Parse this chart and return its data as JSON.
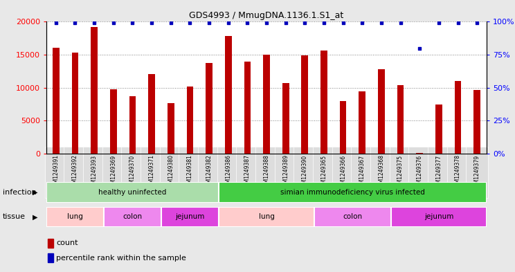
{
  "title": "GDS4993 / MmugDNA.1136.1.S1_at",
  "samples": [
    "GSM1249391",
    "GSM1249392",
    "GSM1249393",
    "GSM1249369",
    "GSM1249370",
    "GSM1249371",
    "GSM1249380",
    "GSM1249381",
    "GSM1249382",
    "GSM1249386",
    "GSM1249387",
    "GSM1249388",
    "GSM1249389",
    "GSM1249390",
    "GSM1249365",
    "GSM1249366",
    "GSM1249367",
    "GSM1249368",
    "GSM1249375",
    "GSM1249376",
    "GSM1249377",
    "GSM1249378",
    "GSM1249379"
  ],
  "counts": [
    16100,
    15300,
    19200,
    9800,
    8700,
    12100,
    7700,
    10200,
    13700,
    17800,
    14000,
    15000,
    10700,
    14900,
    15600,
    8000,
    9500,
    12800,
    10400,
    100,
    7500,
    11000,
    9700
  ],
  "percentiles": [
    99,
    99,
    99,
    99,
    99,
    99,
    99,
    99,
    99,
    99,
    99,
    99,
    99,
    99,
    99,
    99,
    99,
    99,
    99,
    80,
    99,
    99,
    99
  ],
  "bar_color": "#bb0000",
  "dot_color": "#0000bb",
  "ylim_left": [
    0,
    20000
  ],
  "ylim_right": [
    0,
    100
  ],
  "yticks_left": [
    0,
    5000,
    10000,
    15000,
    20000
  ],
  "yticks_right": [
    0,
    25,
    50,
    75,
    100
  ],
  "infection_groups": [
    {
      "label": "healthy uninfected",
      "start": 0,
      "end": 9,
      "color": "#aaddaa"
    },
    {
      "label": "simian immunodeficiency virus infected",
      "start": 9,
      "end": 23,
      "color": "#44cc44"
    }
  ],
  "tissue_groups": [
    {
      "label": "lung",
      "start": 0,
      "end": 3,
      "color": "#ffcccc"
    },
    {
      "label": "colon",
      "start": 3,
      "end": 6,
      "color": "#ee88ee"
    },
    {
      "label": "jejunum",
      "start": 6,
      "end": 9,
      "color": "#dd44dd"
    },
    {
      "label": "lung",
      "start": 9,
      "end": 14,
      "color": "#ffcccc"
    },
    {
      "label": "colon",
      "start": 14,
      "end": 18,
      "color": "#ee88ee"
    },
    {
      "label": "jejunum",
      "start": 18,
      "end": 23,
      "color": "#dd44dd"
    }
  ],
  "infection_label": "infection",
  "tissue_label": "tissue",
  "legend_count_label": "count",
  "legend_percentile_label": "percentile rank within the sample",
  "fig_bg_color": "#e8e8e8",
  "plot_bg_color": "#ffffff",
  "xtick_bg_color": "#dddddd"
}
